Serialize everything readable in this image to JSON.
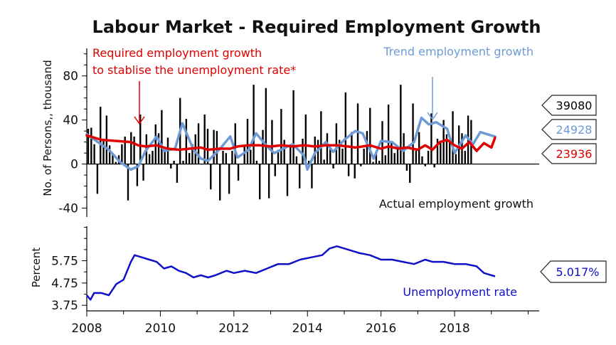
{
  "chart_data": [
    {
      "type": "bar+line",
      "title": "Labour Market - Required Employment Growth",
      "ylabel": "No. of Persons,, thousand",
      "ylim": [
        -48,
        105
      ],
      "yticks": [
        -40,
        0,
        40,
        80
      ],
      "ytick_labels": [
        "-40",
        "0",
        "40",
        "80"
      ],
      "xlim": [
        2008,
        2020.3
      ],
      "annotations": {
        "required": [
          "Required employment growth",
          "to stablise the unemployment rate*"
        ],
        "trend": "Trend employment growth",
        "actual": "Actual employment growth"
      },
      "badges": [
        {
          "label": "39080",
          "value": 39.08,
          "color": "#000000"
        },
        {
          "label": "24928",
          "value": 24.928,
          "color": "#6e9bd6"
        },
        {
          "label": "23936",
          "value": 23.936,
          "color": "#e00000"
        }
      ],
      "colors": {
        "actual": "#000000",
        "trend": "#6e9bd6",
        "required": "#e00000"
      },
      "series": [
        {
          "name": "Actual employment growth",
          "kind": "bar",
          "x_start": 2008.0,
          "x_step": 0.0833,
          "values": [
            32,
            33,
            18,
            -27,
            52,
            23,
            44,
            17,
            10,
            2,
            8,
            18,
            25,
            -33,
            29,
            25,
            -20,
            45,
            -15,
            27,
            9,
            12,
            36,
            28,
            49,
            11,
            24,
            -4,
            3,
            -17,
            60,
            3,
            41,
            10,
            18,
            27,
            37,
            0,
            45,
            32,
            -23,
            31,
            30,
            -33,
            12,
            10,
            -27,
            12,
            37,
            -15,
            0,
            17,
            41,
            13,
            72,
            3,
            -32,
            31,
            69,
            -31,
            40,
            -11,
            13,
            50,
            22,
            -29,
            16,
            67,
            7,
            -22,
            23,
            45,
            3,
            -22,
            25,
            22,
            48,
            4,
            28,
            15,
            -4,
            37,
            22,
            14,
            65,
            -11,
            29,
            -13,
            55,
            -2,
            14,
            30,
            51,
            2,
            11,
            3,
            39,
            8,
            54,
            21,
            10,
            14,
            72,
            28,
            -6,
            -17,
            55,
            12,
            29,
            7,
            -2,
            12,
            46,
            -3,
            23,
            19,
            40,
            27,
            21,
            48,
            9,
            35,
            28,
            12,
            44,
            40
          ]
        },
        {
          "name": "Trend employment growth",
          "kind": "line",
          "x": [
            2008.0,
            2008.3,
            2008.6,
            2008.9,
            2009.2,
            2009.4,
            2009.6,
            2009.9,
            2010.1,
            2010.4,
            2010.6,
            2010.9,
            2011.1,
            2011.3,
            2011.6,
            2011.9,
            2012.1,
            2012.4,
            2012.6,
            2012.9,
            2013.1,
            2013.4,
            2013.6,
            2013.9,
            2014.0,
            2014.2,
            2014.5,
            2014.7,
            2015.0,
            2015.3,
            2015.5,
            2015.8,
            2016.0,
            2016.3,
            2016.6,
            2016.9,
            2017.1,
            2017.3,
            2017.5,
            2017.8,
            2018.0,
            2018.3,
            2018.5,
            2018.7,
            2019.0,
            2019.1
          ],
          "values": [
            27,
            20,
            13,
            2,
            -5,
            -2,
            12,
            25,
            12,
            14,
            37,
            13,
            5,
            3,
            13,
            25,
            6,
            13,
            28,
            16,
            10,
            15,
            18,
            8,
            -5,
            10,
            20,
            11,
            22,
            30,
            28,
            5,
            21,
            20,
            12,
            20,
            42,
            36,
            38,
            32,
            10,
            26,
            18,
            29,
            26,
            25
          ]
        },
        {
          "name": "Required employment growth to stablise the unemployment rate*",
          "kind": "line",
          "x": [
            2008.0,
            2008.4,
            2008.8,
            2009.2,
            2009.4,
            2009.6,
            2009.9,
            2010.2,
            2010.5,
            2010.8,
            2011.1,
            2011.3,
            2011.6,
            2011.9,
            2012.1,
            2012.4,
            2012.7,
            2013.0,
            2013.3,
            2013.6,
            2013.9,
            2014.2,
            2014.5,
            2014.8,
            2015.1,
            2015.3,
            2015.5,
            2015.7,
            2016.0,
            2016.2,
            2016.5,
            2016.7,
            2017.0,
            2017.2,
            2017.4,
            2017.6,
            2017.8,
            2018.0,
            2018.2,
            2018.4,
            2018.6,
            2018.8,
            2019.0,
            2019.1
          ],
          "values": [
            26,
            22,
            21,
            20,
            17,
            16,
            17,
            14,
            13,
            14,
            15,
            13,
            14,
            14,
            16,
            17,
            17,
            16,
            17,
            16,
            17,
            16,
            17,
            17,
            16,
            15,
            16,
            17,
            14,
            16,
            14,
            15,
            13,
            17,
            13,
            20,
            22,
            17,
            14,
            20,
            12,
            19,
            15,
            24
          ]
        }
      ]
    },
    {
      "type": "line",
      "ylabel": "Percent",
      "ylim": [
        3.5,
        7.3
      ],
      "yticks": [
        3.75,
        4.75,
        5.75
      ],
      "ytick_labels": [
        "3.75",
        "4.75",
        "5.75"
      ],
      "xlim": [
        2008,
        2020.3
      ],
      "xticks": [
        2008,
        2010,
        2012,
        2014,
        2016,
        2018
      ],
      "xtick_labels": [
        "2008",
        "2010",
        "2012",
        "2014",
        "2016",
        "2018"
      ],
      "annotation": "Unemployment rate",
      "badge": {
        "label": "5.017%",
        "value": 5.017,
        "color": "#1010c8"
      },
      "series": [
        {
          "name": "Unemployment rate",
          "color": "#1010c8",
          "x": [
            2008.0,
            2008.1,
            2008.2,
            2008.4,
            2008.6,
            2008.8,
            2009.0,
            2009.2,
            2009.3,
            2009.5,
            2009.7,
            2009.9,
            2010.1,
            2010.3,
            2010.5,
            2010.7,
            2010.9,
            2011.1,
            2011.3,
            2011.5,
            2011.8,
            2012.0,
            2012.3,
            2012.6,
            2012.9,
            2013.2,
            2013.5,
            2013.8,
            2014.1,
            2014.4,
            2014.6,
            2014.8,
            2015.0,
            2015.2,
            2015.4,
            2015.7,
            2016.0,
            2016.3,
            2016.6,
            2016.9,
            2017.2,
            2017.4,
            2017.7,
            2018.0,
            2018.3,
            2018.6,
            2018.8,
            2019.0,
            2019.1
          ],
          "values": [
            4.2,
            4.0,
            4.3,
            4.3,
            4.2,
            4.7,
            4.9,
            5.7,
            6.0,
            5.9,
            5.8,
            5.7,
            5.4,
            5.5,
            5.3,
            5.2,
            5.0,
            5.1,
            5.0,
            5.1,
            5.3,
            5.2,
            5.3,
            5.2,
            5.4,
            5.6,
            5.6,
            5.8,
            5.9,
            6.0,
            6.3,
            6.4,
            6.3,
            6.2,
            6.1,
            6.0,
            5.8,
            5.8,
            5.7,
            5.6,
            5.8,
            5.7,
            5.7,
            5.6,
            5.6,
            5.5,
            5.2,
            5.1,
            5.05
          ]
        }
      ]
    }
  ]
}
